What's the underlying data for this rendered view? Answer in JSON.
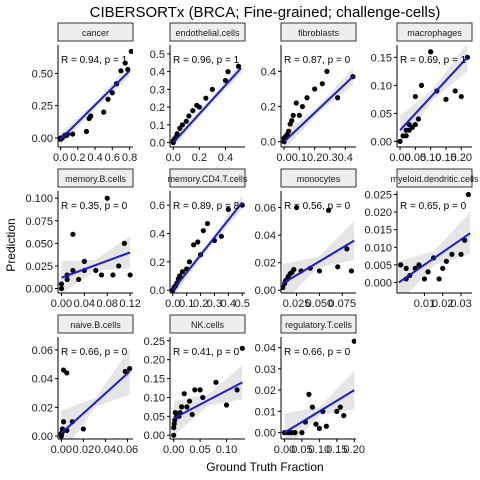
{
  "title": "CIBERSORTx (BRCA; Fine-grained; challenge-cells)",
  "xlabel": "Ground Truth Fraction",
  "ylabel": "Prediction",
  "colors": {
    "fit": "#1a1adb",
    "band": "#e5e5e5",
    "point": "#000000",
    "strip_fill": "#eeeeee"
  },
  "chart_data": [
    {
      "type": "scatter",
      "title": "cancer",
      "stat": "R = 0.94, p = 1",
      "xlim": [
        -0.03,
        0.84
      ],
      "ylim": [
        -0.07,
        0.72
      ],
      "xticks": [
        0.0,
        0.2,
        0.4,
        0.6,
        0.8
      ],
      "xticklabels": [
        "0.0",
        "0.2",
        "0.4",
        "0.6",
        "0.8"
      ],
      "yticks": [
        0.0,
        0.25,
        0.5
      ],
      "yticklabels": [
        "0.00",
        "0.25",
        "0.50"
      ],
      "fit": [
        [
          0.0,
          -0.01
        ],
        [
          0.8,
          0.52
        ]
      ],
      "band": [
        0.025,
        0.045
      ],
      "points": [
        [
          0.0,
          0.0
        ],
        [
          0.0,
          -0.01
        ],
        [
          0.01,
          0.0
        ],
        [
          0.02,
          0.0
        ],
        [
          0.05,
          0.02
        ],
        [
          0.07,
          0.02
        ],
        [
          0.08,
          0.03
        ],
        [
          0.14,
          0.03
        ],
        [
          0.3,
          0.05
        ],
        [
          0.33,
          0.15
        ],
        [
          0.35,
          0.17
        ],
        [
          0.5,
          0.2
        ],
        [
          0.55,
          0.3
        ],
        [
          0.6,
          0.35
        ],
        [
          0.65,
          0.42
        ],
        [
          0.7,
          0.52
        ],
        [
          0.75,
          0.58
        ],
        [
          0.78,
          0.53
        ],
        [
          0.82,
          0.67
        ]
      ]
    },
    {
      "type": "scatter",
      "title": "endothelial.cells",
      "stat": "R = 0.96, p = 1",
      "xlim": [
        -0.025,
        0.55
      ],
      "ylim": [
        -0.025,
        0.55
      ],
      "xticks": [
        0.0,
        0.2,
        0.4
      ],
      "xticklabels": [
        "0.0",
        "0.2",
        "0.4"
      ],
      "yticks": [
        0.0,
        0.1,
        0.2,
        0.3,
        0.4,
        0.5
      ],
      "yticklabels": [
        "0.0",
        "0.1",
        "0.2",
        "0.3",
        "0.4",
        "0.5"
      ],
      "fit": [
        [
          0.0,
          0.0
        ],
        [
          0.52,
          0.42
        ]
      ],
      "band": [
        0.015,
        0.03
      ],
      "points": [
        [
          0.0,
          0.0
        ],
        [
          0.0,
          0.01
        ],
        [
          0.01,
          0.02
        ],
        [
          0.02,
          0.03
        ],
        [
          0.03,
          0.05
        ],
        [
          0.05,
          0.08
        ],
        [
          0.07,
          0.1
        ],
        [
          0.1,
          0.12
        ],
        [
          0.12,
          0.15
        ],
        [
          0.15,
          0.18
        ],
        [
          0.18,
          0.21
        ],
        [
          0.2,
          0.2
        ],
        [
          0.25,
          0.25
        ],
        [
          0.3,
          0.3
        ],
        [
          0.4,
          0.35
        ],
        [
          0.42,
          0.4
        ],
        [
          0.5,
          0.43
        ]
      ]
    },
    {
      "type": "scatter",
      "title": "fibroblasts",
      "stat": "R = 0.87, p = 0",
      "xlim": [
        -0.02,
        0.47
      ],
      "ylim": [
        -0.03,
        0.55
      ],
      "xticks": [
        0.0,
        0.1,
        0.2,
        0.3,
        0.4
      ],
      "xticklabels": [
        "0.0",
        "0.1",
        "0.2",
        "0.3",
        "0.4"
      ],
      "yticks": [
        0.0,
        0.2,
        0.4
      ],
      "yticklabels": [
        "0.0",
        "0.2",
        "0.4"
      ],
      "fit": [
        [
          0.0,
          0.0
        ],
        [
          0.45,
          0.37
        ]
      ],
      "band": [
        0.02,
        0.05
      ],
      "points": [
        [
          0.0,
          0.0
        ],
        [
          0.0,
          0.02
        ],
        [
          0.01,
          0.03
        ],
        [
          0.02,
          0.04
        ],
        [
          0.03,
          0.06
        ],
        [
          0.04,
          0.1
        ],
        [
          0.05,
          0.12
        ],
        [
          0.06,
          0.15
        ],
        [
          0.08,
          0.22
        ],
        [
          0.1,
          0.15
        ],
        [
          0.12,
          0.2
        ],
        [
          0.15,
          0.25
        ],
        [
          0.2,
          0.3
        ],
        [
          0.25,
          0.33
        ],
        [
          0.28,
          0.4
        ],
        [
          0.35,
          0.25
        ],
        [
          0.45,
          0.37
        ]
      ]
    },
    {
      "type": "scatter",
      "title": "macrophages",
      "stat": "R = 0.69, p = 1",
      "xlim": [
        -0.01,
        0.235
      ],
      "ylim": [
        -0.01,
        0.172
      ],
      "xticks": [
        0.0,
        0.05,
        0.1,
        0.15,
        0.2
      ],
      "xticklabels": [
        "0.00",
        "0.05",
        "0.10",
        "0.15",
        "0.20"
      ],
      "yticks": [
        0.0,
        0.05,
        0.1,
        0.15
      ],
      "yticklabels": [
        "0.00",
        "0.05",
        "0.10",
        "0.15"
      ],
      "fit": [
        [
          0.0,
          0.02
        ],
        [
          0.22,
          0.15
        ]
      ],
      "band": [
        0.01,
        0.025
      ],
      "points": [
        [
          0.0,
          0.0
        ],
        [
          0.01,
          0.01
        ],
        [
          0.02,
          0.01
        ],
        [
          0.02,
          0.02
        ],
        [
          0.03,
          0.02
        ],
        [
          0.03,
          0.03
        ],
        [
          0.04,
          0.025
        ],
        [
          0.05,
          0.03
        ],
        [
          0.06,
          0.04
        ],
        [
          0.05,
          0.08
        ],
        [
          0.07,
          0.1
        ],
        [
          0.1,
          0.16
        ],
        [
          0.12,
          0.09
        ],
        [
          0.15,
          0.075
        ],
        [
          0.2,
          0.08
        ],
        [
          0.22,
          0.15
        ],
        [
          0.18,
          0.09
        ]
      ]
    },
    {
      "type": "scatter",
      "title": "memory.B.cells",
      "stat": "R = 0.35, p = 0",
      "xlim": [
        -0.006,
        0.125
      ],
      "ylim": [
        -0.005,
        0.108
      ],
      "xticks": [
        0.0,
        0.04,
        0.08,
        0.12
      ],
      "xticklabels": [
        "0.00",
        "0.04",
        "0.08",
        "0.12"
      ],
      "yticks": [
        0.0,
        0.025,
        0.05,
        0.075,
        0.1
      ],
      "yticklabels": [
        "0.000",
        "0.025",
        "0.050",
        "0.075",
        "0.100"
      ],
      "fit": [
        [
          0.0,
          0.012
        ],
        [
          0.12,
          0.04
        ]
      ],
      "band": [
        0.006,
        0.018
      ],
      "points": [
        [
          0.0,
          0.0
        ],
        [
          0.0,
          0.005
        ],
        [
          0.01,
          0.01
        ],
        [
          0.01,
          0.015
        ],
        [
          0.02,
          0.02
        ],
        [
          0.03,
          0.01
        ],
        [
          0.04,
          0.02
        ],
        [
          0.02,
          0.06
        ],
        [
          0.04,
          0.03
        ],
        [
          0.06,
          0.02
        ],
        [
          0.07,
          0.015
        ],
        [
          0.08,
          0.1
        ],
        [
          0.1,
          0.025
        ],
        [
          0.12,
          0.015
        ],
        [
          0.11,
          0.05
        ],
        [
          0.09,
          0.015
        ]
      ]
    },
    {
      "type": "scatter",
      "title": "memory.CD4.T.cells",
      "stat": "R = 0.89, p = 8",
      "xlim": [
        -0.02,
        0.52
      ],
      "ylim": [
        -0.02,
        0.7
      ],
      "xticks": [
        0.0,
        0.1,
        0.2,
        0.3,
        0.4,
        0.5
      ],
      "xticklabels": [
        "0.0",
        "0.1",
        "0.2",
        "0.3",
        "0.4",
        "0.5"
      ],
      "yticks": [
        0.0,
        0.2,
        0.4,
        0.6
      ],
      "yticklabels": [
        "0.0",
        "0.2",
        "0.4",
        "0.6"
      ],
      "fit": [
        [
          0.0,
          0.0
        ],
        [
          0.5,
          0.62
        ]
      ],
      "band": [
        0.02,
        0.05
      ],
      "points": [
        [
          0.0,
          0.0
        ],
        [
          0.01,
          0.02
        ],
        [
          0.02,
          0.03
        ],
        [
          0.03,
          0.05
        ],
        [
          0.04,
          0.08
        ],
        [
          0.05,
          0.1
        ],
        [
          0.07,
          0.13
        ],
        [
          0.1,
          0.15
        ],
        [
          0.12,
          0.2
        ],
        [
          0.15,
          0.32
        ],
        [
          0.18,
          0.34
        ],
        [
          0.2,
          0.25
        ],
        [
          0.22,
          0.42
        ],
        [
          0.25,
          0.47
        ],
        [
          0.3,
          0.35
        ],
        [
          0.35,
          0.38
        ],
        [
          0.4,
          0.57
        ],
        [
          0.5,
          0.6
        ]
      ]
    },
    {
      "type": "scatter",
      "title": "monocytes",
      "stat": "R = 0.56, p = 0",
      "xlim": [
        0.008,
        0.09
      ],
      "ylim": [
        -0.002,
        0.072
      ],
      "xticks": [
        0.025,
        0.05,
        0.075
      ],
      "xticklabels": [
        "0.025",
        "0.050",
        "0.075"
      ],
      "yticks": [
        0.0,
        0.02,
        0.04,
        0.06
      ],
      "yticklabels": [
        "0.00",
        "0.02",
        "0.04",
        "0.06"
      ],
      "fit": [
        [
          0.01,
          0.005
        ],
        [
          0.088,
          0.036
        ]
      ],
      "band": [
        0.004,
        0.014
      ],
      "points": [
        [
          0.01,
          0.002
        ],
        [
          0.012,
          0.005
        ],
        [
          0.013,
          0.007
        ],
        [
          0.015,
          0.008
        ],
        [
          0.016,
          0.01
        ],
        [
          0.018,
          0.012
        ],
        [
          0.02,
          0.013
        ],
        [
          0.022,
          0.015
        ],
        [
          0.025,
          0.06
        ],
        [
          0.03,
          0.014
        ],
        [
          0.04,
          0.016
        ],
        [
          0.05,
          0.014
        ],
        [
          0.06,
          0.058
        ],
        [
          0.07,
          0.017
        ],
        [
          0.08,
          0.03
        ],
        [
          0.085,
          0.014
        ]
      ]
    },
    {
      "type": "scatter",
      "title": "myeloid.dendritic.cells",
      "stat": "R = 0.65, p = 0",
      "xlim": [
        -0.005,
        0.036
      ],
      "ylim": [
        -0.003,
        0.026
      ],
      "xticks": [
        0.01,
        0.02,
        0.03
      ],
      "xticklabels": [
        "0.01",
        "0.02",
        "0.03"
      ],
      "yticks": [
        0.0,
        0.005,
        0.01,
        0.015,
        0.02,
        0.025
      ],
      "yticklabels": [
        "0.000",
        "0.005",
        "0.010",
        "0.015",
        "0.020",
        "0.025"
      ],
      "fit": [
        [
          -0.004,
          0.0
        ],
        [
          0.035,
          0.014
        ]
      ],
      "band": [
        0.002,
        0.006
      ],
      "points": [
        [
          -0.003,
          0.005
        ],
        [
          0.0,
          0.004
        ],
        [
          0.0,
          0.001
        ],
        [
          0.002,
          0.002
        ],
        [
          0.005,
          0.004
        ],
        [
          0.007,
          0.005
        ],
        [
          0.01,
          0.001
        ],
        [
          0.012,
          0.003
        ],
        [
          0.015,
          0.007
        ],
        [
          0.018,
          0.001
        ],
        [
          0.02,
          0.004
        ],
        [
          0.022,
          0.006
        ],
        [
          0.025,
          0.008
        ],
        [
          0.03,
          0.008
        ],
        [
          0.032,
          0.012
        ],
        [
          0.034,
          0.025
        ]
      ]
    },
    {
      "type": "scatter",
      "title": "naive.B.cells",
      "stat": "R = 0.66, p = 0",
      "xlim": [
        -0.003,
        0.065
      ],
      "ylim": [
        -0.002,
        0.069
      ],
      "xticks": [
        0.0,
        0.02,
        0.04,
        0.06
      ],
      "xticklabels": [
        "0.00",
        "0.02",
        "0.04",
        "0.06"
      ],
      "yticks": [
        0.0,
        0.02,
        0.04,
        0.06
      ],
      "yticklabels": [
        "0.00",
        "0.02",
        "0.04",
        "0.06"
      ],
      "fit": [
        [
          0.0,
          0.002
        ],
        [
          0.062,
          0.045
        ]
      ],
      "band": [
        0.003,
        0.016
      ],
      "points": [
        [
          0.0,
          0.0
        ],
        [
          0.0,
          0.001
        ],
        [
          0.0,
          0.002
        ],
        [
          0.001,
          0.003
        ],
        [
          0.001,
          0.005
        ],
        [
          0.002,
          0.01
        ],
        [
          0.002,
          0.046
        ],
        [
          0.005,
          0.004
        ],
        [
          0.005,
          0.044
        ],
        [
          0.01,
          0.01
        ],
        [
          0.02,
          0.005
        ],
        [
          0.058,
          0.045
        ],
        [
          0.062,
          0.047
        ]
      ]
    },
    {
      "type": "scatter",
      "title": "NK.cells",
      "stat": "R = 0.41, p = 0",
      "xlim": [
        -0.007,
        0.135
      ],
      "ylim": [
        -0.01,
        0.26
      ],
      "xticks": [
        0.0,
        0.05,
        0.1
      ],
      "xticklabels": [
        "0.00",
        "0.05",
        "0.10"
      ],
      "yticks": [
        0.0,
        0.05,
        0.1,
        0.15,
        0.2,
        0.25
      ],
      "yticklabels": [
        "0.00",
        "0.05",
        "0.10",
        "0.15",
        "0.20",
        "0.25"
      ],
      "fit": [
        [
          0.0,
          0.045
        ],
        [
          0.13,
          0.14
        ]
      ],
      "band": [
        0.015,
        0.045
      ],
      "points": [
        [
          0.0,
          0.0
        ],
        [
          0.0,
          0.02
        ],
        [
          0.001,
          0.03
        ],
        [
          0.002,
          0.04
        ],
        [
          0.003,
          0.06
        ],
        [
          0.005,
          0.05
        ],
        [
          0.01,
          0.05
        ],
        [
          0.012,
          0.06
        ],
        [
          0.015,
          0.075
        ],
        [
          0.02,
          0.11
        ],
        [
          0.025,
          0.075
        ],
        [
          0.03,
          0.09
        ],
        [
          0.035,
          0.055
        ],
        [
          0.04,
          0.12
        ],
        [
          0.05,
          0.12
        ],
        [
          0.055,
          0.1
        ],
        [
          0.08,
          0.14
        ],
        [
          0.1,
          0.08
        ],
        [
          0.12,
          0.12
        ],
        [
          0.13,
          0.23
        ]
      ]
    },
    {
      "type": "scatter",
      "title": "regulatory.T.cells",
      "stat": "R = 0.66, p = 0",
      "xlim": [
        -0.01,
        0.205
      ],
      "ylim": [
        -0.003,
        0.045
      ],
      "xticks": [
        0.0,
        0.05,
        0.1,
        0.15,
        0.2
      ],
      "xticklabels": [
        "0.00",
        "0.05",
        "0.10",
        "0.15",
        "0.20"
      ],
      "yticks": [
        0.0,
        0.01,
        0.02,
        0.03,
        0.04
      ],
      "yticklabels": [
        "0.00",
        "0.01",
        "0.02",
        "0.03",
        "0.04"
      ],
      "fit": [
        [
          0.0,
          0.0
        ],
        [
          0.2,
          0.02
        ]
      ],
      "band": [
        0.002,
        0.009
      ],
      "points": [
        [
          0.0,
          0.0
        ],
        [
          0.01,
          0.0
        ],
        [
          0.02,
          0.0
        ],
        [
          0.03,
          0.0
        ],
        [
          0.05,
          0.0
        ],
        [
          0.06,
          0.005
        ],
        [
          0.07,
          0.018
        ],
        [
          0.08,
          0.012
        ],
        [
          0.09,
          0.004
        ],
        [
          0.1,
          0.002
        ],
        [
          0.11,
          0.01
        ],
        [
          0.12,
          0.003
        ],
        [
          0.15,
          0.01
        ],
        [
          0.16,
          0.012
        ],
        [
          0.17,
          0.008
        ],
        [
          0.2,
          0.043
        ]
      ]
    }
  ]
}
